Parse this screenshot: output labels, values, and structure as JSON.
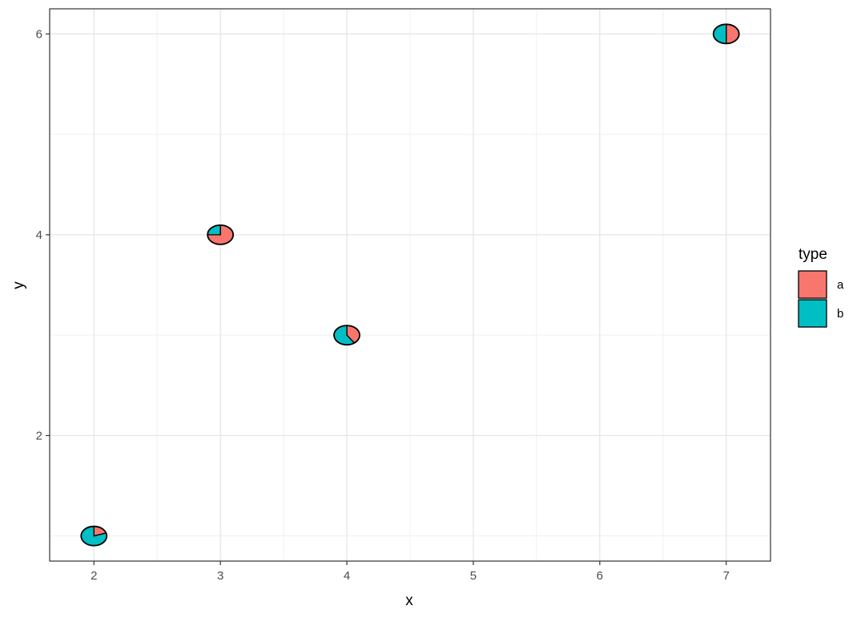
{
  "chart_data": {
    "type": "scatter",
    "marker": "pie",
    "xlabel": "x",
    "ylabel": "y",
    "xlim": [
      1.65,
      7.35
    ],
    "ylim": [
      0.75,
      6.25
    ],
    "x_ticks": [
      2,
      3,
      4,
      5,
      6,
      7
    ],
    "y_ticks": [
      2,
      4,
      6
    ],
    "grid": true,
    "legend": {
      "title": "type",
      "placement": "right",
      "entries": [
        {
          "label": "a",
          "color": "#F8766D"
        },
        {
          "label": "b",
          "color": "#00BFC4"
        }
      ]
    },
    "points": [
      {
        "x": 2,
        "y": 1,
        "a": 0.2,
        "b": 0.8
      },
      {
        "x": 3,
        "y": 4,
        "a": 0.75,
        "b": 0.25
      },
      {
        "x": 4,
        "y": 3,
        "a": 0.4,
        "b": 0.6
      },
      {
        "x": 7,
        "y": 6,
        "a": 0.5,
        "b": 0.5
      }
    ]
  }
}
